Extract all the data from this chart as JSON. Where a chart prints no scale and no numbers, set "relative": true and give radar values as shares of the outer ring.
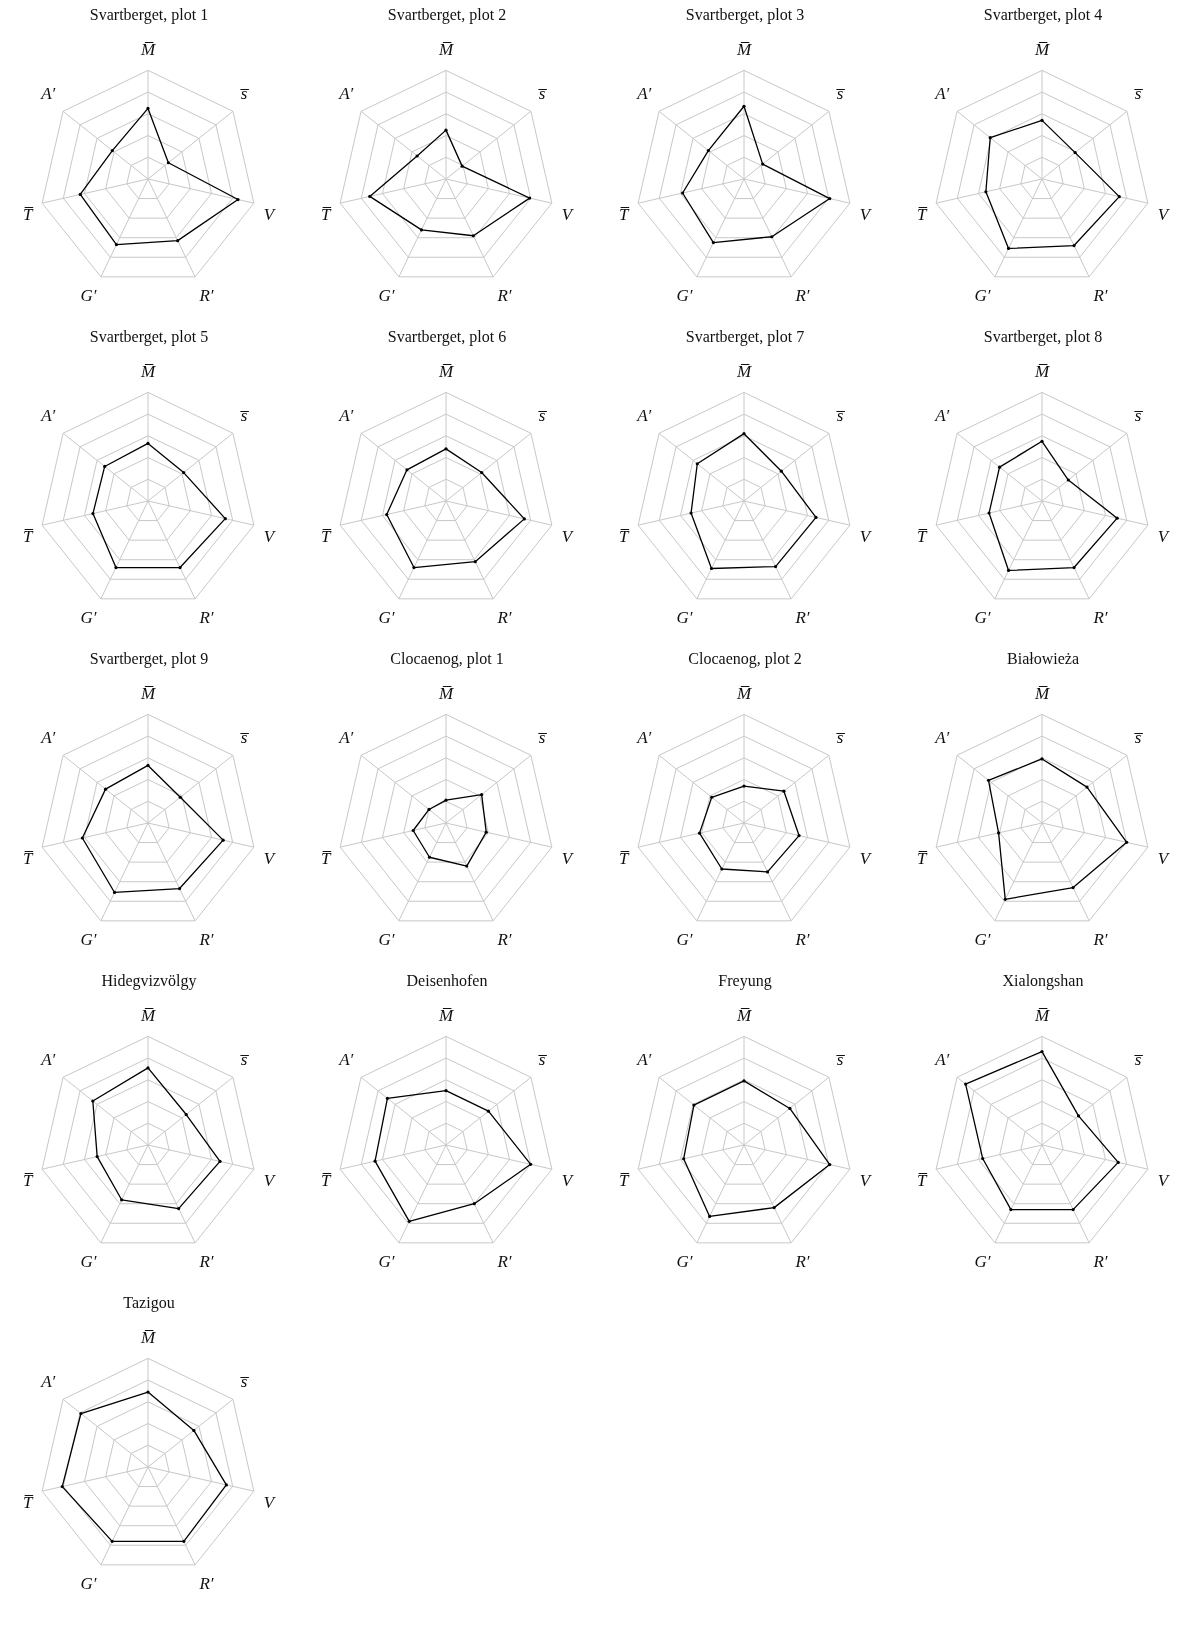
{
  "chart_data": [
    {
      "type": "radar",
      "title": "Svartberget, plot 1",
      "relative": true,
      "grid": true,
      "marker": "circle",
      "categories": [
        "M̅",
        "s̅",
        "V",
        "R′",
        "G′",
        "T̅",
        "A′"
      ],
      "series": [
        {
          "color": "#000000",
          "values": [
            0.65,
            0.24,
            0.85,
            0.63,
            0.67,
            0.64,
            0.42
          ]
        }
      ]
    },
    {
      "type": "radar",
      "title": "Svartberget, plot 2",
      "relative": true,
      "grid": true,
      "marker": "circle",
      "categories": [
        "M̅",
        "s̅",
        "V",
        "R′",
        "G′",
        "T̅",
        "A′"
      ],
      "series": [
        {
          "color": "#000000",
          "values": [
            0.45,
            0.19,
            0.79,
            0.58,
            0.52,
            0.72,
            0.34
          ]
        }
      ]
    },
    {
      "type": "radar",
      "title": "Svartberget, plot 3",
      "relative": true,
      "grid": true,
      "marker": "circle",
      "categories": [
        "M̅",
        "s̅",
        "V",
        "R′",
        "G′",
        "T̅",
        "A′"
      ],
      "series": [
        {
          "color": "#000000",
          "values": [
            0.67,
            0.22,
            0.81,
            0.59,
            0.65,
            0.58,
            0.42
          ]
        }
      ]
    },
    {
      "type": "radar",
      "title": "Svartberget, plot 4",
      "relative": true,
      "grid": true,
      "marker": "circle",
      "categories": [
        "M̅",
        "s̅",
        "V",
        "R′",
        "G′",
        "T̅",
        "A′"
      ],
      "series": [
        {
          "color": "#000000",
          "values": [
            0.54,
            0.39,
            0.73,
            0.68,
            0.71,
            0.53,
            0.61
          ]
        }
      ]
    },
    {
      "type": "radar",
      "title": "Svartberget, plot 5",
      "relative": true,
      "grid": true,
      "marker": "circle",
      "categories": [
        "M̅",
        "s̅",
        "V",
        "R′",
        "G′",
        "T̅",
        "A′"
      ],
      "series": [
        {
          "color": "#000000",
          "values": [
            0.53,
            0.42,
            0.73,
            0.68,
            0.68,
            0.52,
            0.51
          ]
        }
      ]
    },
    {
      "type": "radar",
      "title": "Svartberget, plot 6",
      "relative": true,
      "grid": true,
      "marker": "circle",
      "categories": [
        "M̅",
        "s̅",
        "V",
        "R′",
        "G′",
        "T̅",
        "A′"
      ],
      "series": [
        {
          "color": "#000000",
          "values": [
            0.48,
            0.42,
            0.74,
            0.62,
            0.68,
            0.56,
            0.46
          ]
        }
      ]
    },
    {
      "type": "radar",
      "title": "Svartberget, plot 7",
      "relative": true,
      "grid": true,
      "marker": "circle",
      "categories": [
        "M̅",
        "s̅",
        "V",
        "R′",
        "G′",
        "T̅",
        "A′"
      ],
      "series": [
        {
          "color": "#000000",
          "values": [
            0.62,
            0.44,
            0.68,
            0.67,
            0.69,
            0.5,
            0.55
          ]
        }
      ]
    },
    {
      "type": "radar",
      "title": "Svartberget, plot 8",
      "relative": true,
      "grid": true,
      "marker": "circle",
      "categories": [
        "M̅",
        "s̅",
        "V",
        "R′",
        "G′",
        "T̅",
        "A′"
      ],
      "series": [
        {
          "color": "#000000",
          "values": [
            0.55,
            0.31,
            0.71,
            0.68,
            0.71,
            0.5,
            0.5
          ]
        }
      ]
    },
    {
      "type": "radar",
      "title": "Svartberget, plot 9",
      "relative": true,
      "grid": true,
      "marker": "circle",
      "categories": [
        "M̅",
        "s̅",
        "V",
        "R′",
        "G′",
        "T̅",
        "A′"
      ],
      "series": [
        {
          "color": "#000000",
          "values": [
            0.53,
            0.38,
            0.71,
            0.67,
            0.71,
            0.62,
            0.5
          ]
        }
      ]
    },
    {
      "type": "radar",
      "title": "Clocaenog, plot 1",
      "relative": true,
      "grid": true,
      "marker": "circle",
      "categories": [
        "M̅",
        "s̅",
        "V",
        "R′",
        "G′",
        "T̅",
        "A′"
      ],
      "series": [
        {
          "color": "#000000",
          "values": [
            0.21,
            0.42,
            0.38,
            0.44,
            0.35,
            0.31,
            0.2
          ]
        }
      ]
    },
    {
      "type": "radar",
      "title": "Clocaenog, plot 2",
      "relative": true,
      "grid": true,
      "marker": "circle",
      "categories": [
        "M̅",
        "s̅",
        "V",
        "R′",
        "G′",
        "T̅",
        "A′"
      ],
      "series": [
        {
          "color": "#000000",
          "values": [
            0.34,
            0.47,
            0.52,
            0.5,
            0.47,
            0.42,
            0.38
          ]
        }
      ]
    },
    {
      "type": "radar",
      "title": "Białowieża",
      "relative": true,
      "grid": true,
      "marker": "circle",
      "categories": [
        "M̅",
        "s̅",
        "V",
        "R′",
        "G′",
        "T̅",
        "A′"
      ],
      "series": [
        {
          "color": "#000000",
          "values": [
            0.59,
            0.53,
            0.8,
            0.66,
            0.78,
            0.41,
            0.63
          ]
        }
      ]
    },
    {
      "type": "radar",
      "title": "Hidegvizvölgy",
      "relative": true,
      "grid": true,
      "marker": "circle",
      "categories": [
        "M̅",
        "s̅",
        "V",
        "R′",
        "G′",
        "T̅",
        "A′"
      ],
      "series": [
        {
          "color": "#000000",
          "values": [
            0.71,
            0.45,
            0.68,
            0.65,
            0.56,
            0.48,
            0.65
          ]
        }
      ]
    },
    {
      "type": "radar",
      "title": "Deisenhofen",
      "relative": true,
      "grid": true,
      "marker": "circle",
      "categories": [
        "M̅",
        "s̅",
        "V",
        "R′",
        "G′",
        "T̅",
        "A′"
      ],
      "series": [
        {
          "color": "#000000",
          "values": [
            0.5,
            0.5,
            0.8,
            0.6,
            0.78,
            0.67,
            0.69
          ]
        }
      ]
    },
    {
      "type": "radar",
      "title": "Freyung",
      "relative": true,
      "grid": true,
      "marker": "circle",
      "categories": [
        "M̅",
        "s̅",
        "V",
        "R′",
        "G′",
        "T̅",
        "A′"
      ],
      "series": [
        {
          "color": "#000000",
          "values": [
            0.59,
            0.54,
            0.81,
            0.64,
            0.73,
            0.57,
            0.59
          ]
        }
      ]
    },
    {
      "type": "radar",
      "title": "Xialongshan",
      "relative": true,
      "grid": true,
      "marker": "circle",
      "categories": [
        "M̅",
        "s̅",
        "V",
        "R′",
        "G′",
        "T̅",
        "A′"
      ],
      "series": [
        {
          "color": "#000000",
          "values": [
            0.86,
            0.43,
            0.72,
            0.66,
            0.66,
            0.56,
            0.9
          ]
        }
      ]
    },
    {
      "type": "radar",
      "title": "Tazigou",
      "relative": true,
      "grid": true,
      "marker": "circle",
      "categories": [
        "M̅",
        "s̅",
        "V",
        "R′",
        "G′",
        "T̅",
        "A′"
      ],
      "series": [
        {
          "color": "#000000",
          "values": [
            0.69,
            0.54,
            0.74,
            0.76,
            0.76,
            0.81,
            0.79
          ]
        }
      ]
    }
  ]
}
